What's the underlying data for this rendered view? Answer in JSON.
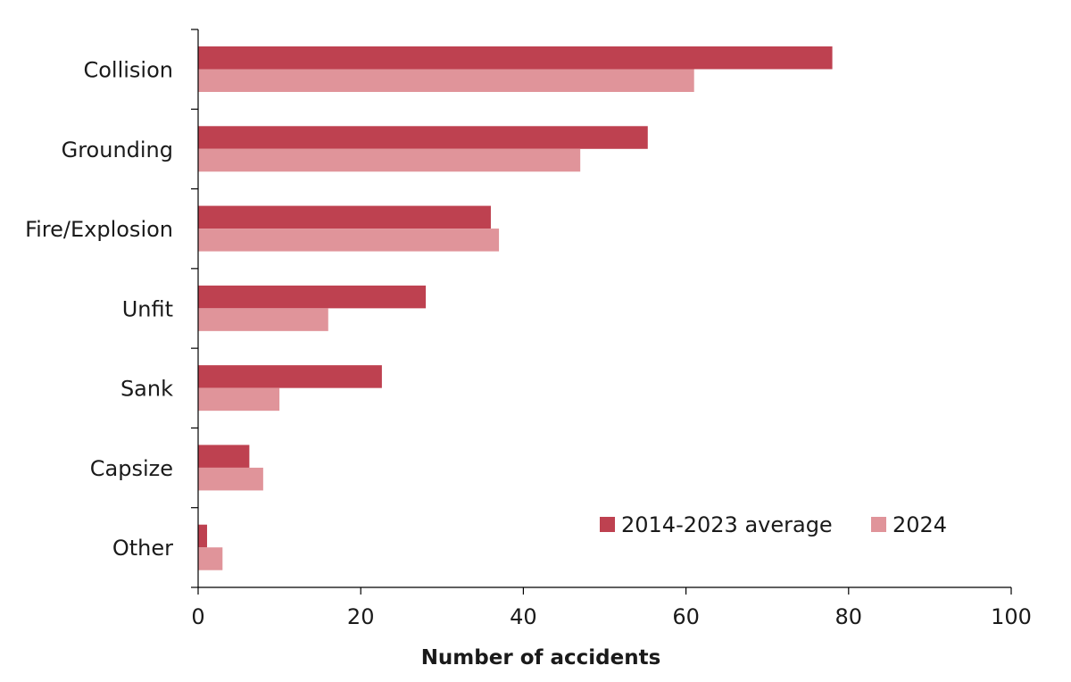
{
  "chart_data": {
    "type": "bar",
    "orientation": "horizontal",
    "categories": [
      "Collision",
      "Grounding",
      "Fire/Explosion",
      "Unfit",
      "Sank",
      "Capsize",
      "Other"
    ],
    "series": [
      {
        "name": "2014-2023 average",
        "color": "#be4150",
        "values": [
          78,
          55.3,
          36,
          28,
          22.6,
          6.3,
          1.1
        ]
      },
      {
        "name": "2024",
        "color": "#e0949a",
        "values": [
          61,
          47,
          37,
          16,
          10,
          8,
          3
        ]
      }
    ],
    "xlabel": "Number of accidents",
    "xlim": [
      0,
      100
    ],
    "xticks": [
      0,
      20,
      40,
      60,
      80,
      100
    ],
    "grid": false,
    "legend": {
      "position": "lower-right",
      "items": [
        "2014-2023 average",
        "2024"
      ]
    }
  }
}
